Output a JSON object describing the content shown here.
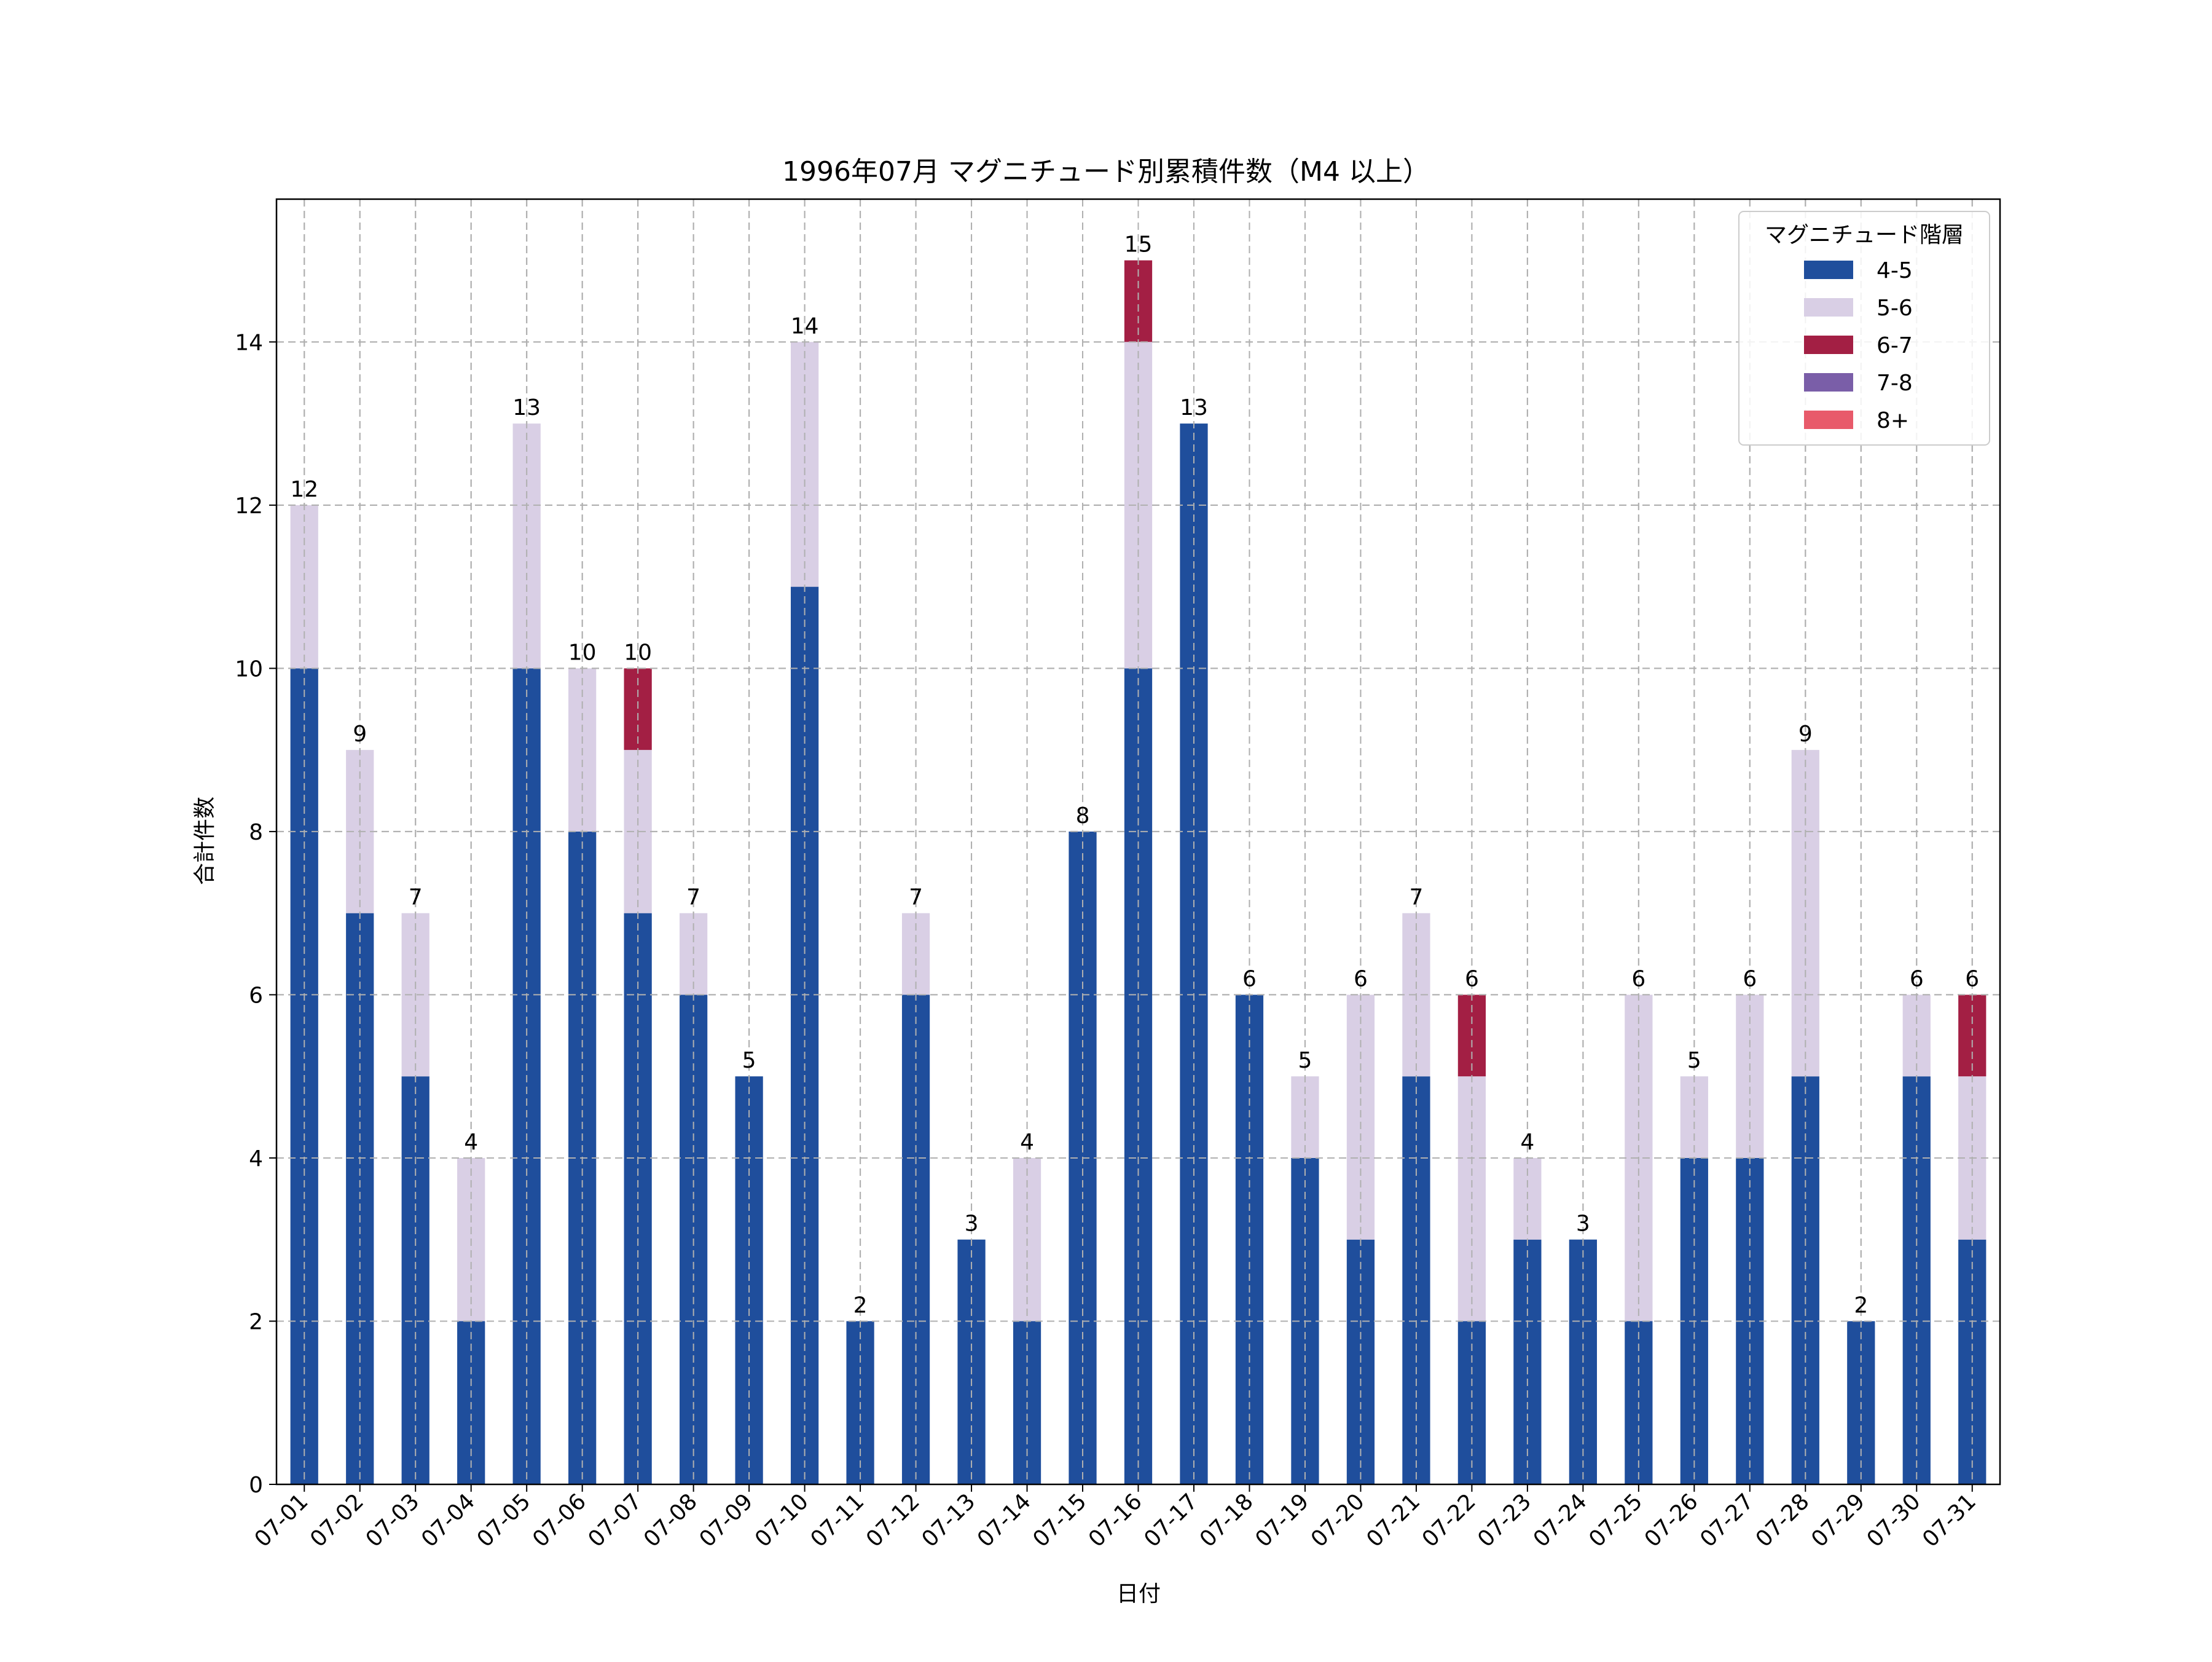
{
  "chart_data": {
    "type": "bar",
    "stacked": true,
    "title": "1996年07月 マグニチュード別累積件数（M4 以上）",
    "xlabel": "日付",
    "ylabel": "合計件数",
    "ylim": [
      0,
      15.75
    ],
    "yticks": [
      0,
      2,
      4,
      6,
      8,
      10,
      12,
      14
    ],
    "grid": true,
    "legend": {
      "title": "マグニチュード階層",
      "position": "top-right"
    },
    "categories": [
      "07-01",
      "07-02",
      "07-03",
      "07-04",
      "07-05",
      "07-06",
      "07-07",
      "07-08",
      "07-09",
      "07-10",
      "07-11",
      "07-12",
      "07-13",
      "07-14",
      "07-15",
      "07-16",
      "07-17",
      "07-18",
      "07-19",
      "07-20",
      "07-21",
      "07-22",
      "07-23",
      "07-24",
      "07-25",
      "07-26",
      "07-27",
      "07-28",
      "07-29",
      "07-30",
      "07-31"
    ],
    "series": [
      {
        "name": "4-5",
        "color": "#1f4e9c",
        "values": [
          10,
          7,
          5,
          2,
          10,
          8,
          7,
          6,
          5,
          11,
          2,
          6,
          3,
          2,
          8,
          10,
          13,
          6,
          4,
          3,
          5,
          2,
          3,
          3,
          2,
          4,
          4,
          5,
          2,
          5,
          3
        ]
      },
      {
        "name": "5-6",
        "color": "#d9cfe5",
        "values": [
          2,
          2,
          2,
          2,
          3,
          2,
          2,
          1,
          0,
          3,
          0,
          1,
          0,
          2,
          0,
          4,
          0,
          0,
          1,
          3,
          2,
          3,
          1,
          0,
          4,
          1,
          2,
          4,
          0,
          1,
          2
        ]
      },
      {
        "name": "6-7",
        "color": "#a31f44",
        "values": [
          0,
          0,
          0,
          0,
          0,
          0,
          1,
          0,
          0,
          0,
          0,
          0,
          0,
          0,
          0,
          1,
          0,
          0,
          0,
          0,
          0,
          1,
          0,
          0,
          0,
          0,
          0,
          0,
          0,
          0,
          1
        ]
      },
      {
        "name": "7-8",
        "color": "#7a5ea8",
        "values": [
          0,
          0,
          0,
          0,
          0,
          0,
          0,
          0,
          0,
          0,
          0,
          0,
          0,
          0,
          0,
          0,
          0,
          0,
          0,
          0,
          0,
          0,
          0,
          0,
          0,
          0,
          0,
          0,
          0,
          0,
          0
        ]
      },
      {
        "name": "8+",
        "color": "#e85a6a",
        "values": [
          0,
          0,
          0,
          0,
          0,
          0,
          0,
          0,
          0,
          0,
          0,
          0,
          0,
          0,
          0,
          0,
          0,
          0,
          0,
          0,
          0,
          0,
          0,
          0,
          0,
          0,
          0,
          0,
          0,
          0,
          0
        ]
      }
    ],
    "totals": [
      12,
      9,
      7,
      4,
      13,
      10,
      10,
      7,
      5,
      14,
      2,
      7,
      3,
      4,
      8,
      15,
      13,
      6,
      5,
      6,
      7,
      6,
      4,
      3,
      6,
      5,
      6,
      9,
      2,
      6,
      6
    ]
  }
}
